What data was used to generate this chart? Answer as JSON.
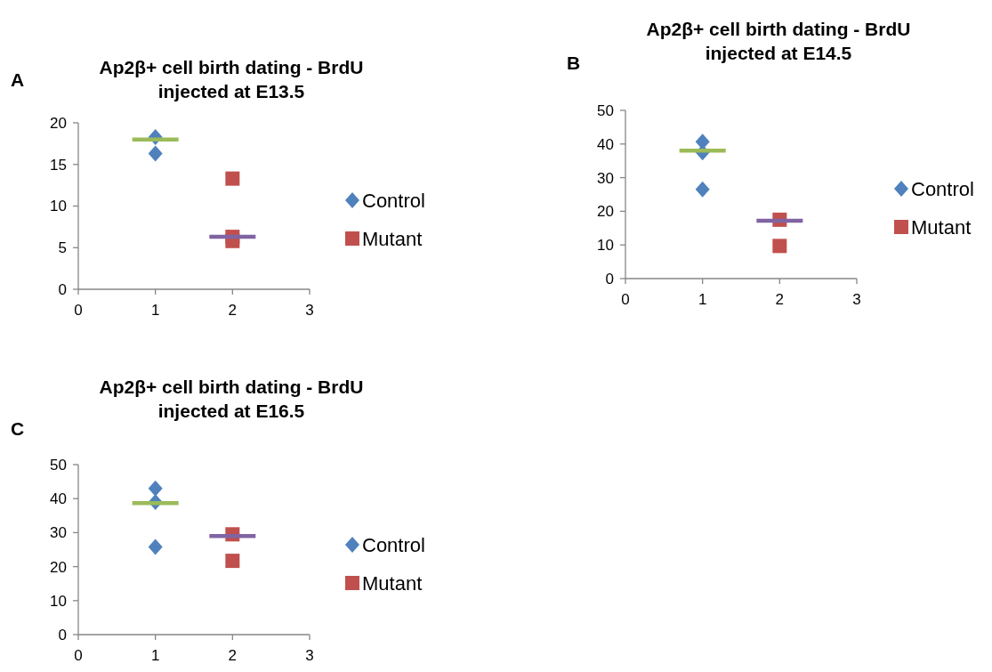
{
  "chart_data": [
    {
      "type": "scatter",
      "title": "Ap2β+ cell birth dating - BrdU injected at E13.5",
      "annotations": [
        "A"
      ],
      "xlim": [
        0,
        3
      ],
      "xticks": [
        0,
        1,
        2,
        3
      ],
      "ylim": [
        0,
        20
      ],
      "yticks": [
        0,
        5,
        10,
        15,
        20
      ],
      "grid": false,
      "legend": "right",
      "series": [
        {
          "name": "Control",
          "color": "#4f81bd",
          "marker": "diamond",
          "x": [
            1,
            1
          ],
          "values": [
            18.3,
            16.3
          ]
        },
        {
          "name": "Mutant",
          "color": "#c0504d",
          "marker": "square",
          "x": [
            2,
            2,
            2
          ],
          "values": [
            13.3,
            6.3,
            5.8
          ]
        },
        {
          "type": "line",
          "color": "#9bbb59",
          "marker": "none",
          "x": [
            0.7,
            1.3
          ],
          "values": [
            18,
            18
          ]
        },
        {
          "type": "line",
          "color": "#8064a2",
          "marker": "none",
          "x": [
            1.7,
            2.3
          ],
          "values": [
            6.3,
            6.3
          ]
        }
      ]
    },
    {
      "type": "scatter",
      "title": "Ap2β+ cell birth dating - BrdU injected at E14.5",
      "annotations": [
        "B"
      ],
      "xlim": [
        0,
        3
      ],
      "xticks": [
        0,
        1,
        2,
        3
      ],
      "ylim": [
        0,
        50
      ],
      "yticks": [
        0,
        10,
        20,
        30,
        40,
        50
      ],
      "grid": false,
      "legend": "right",
      "series": [
        {
          "name": "Control",
          "color": "#4f81bd",
          "marker": "diamond",
          "x": [
            1,
            1,
            1
          ],
          "values": [
            40.7,
            37.5,
            26.5
          ]
        },
        {
          "name": "Mutant",
          "color": "#c0504d",
          "marker": "square",
          "x": [
            2,
            2
          ],
          "values": [
            17.5,
            9.7
          ]
        },
        {
          "type": "line",
          "color": "#9bbb59",
          "marker": "none",
          "x": [
            0.7,
            1.3
          ],
          "values": [
            38,
            38
          ]
        },
        {
          "type": "line",
          "color": "#8064a2",
          "marker": "none",
          "x": [
            1.7,
            2.3
          ],
          "values": [
            17.2,
            17.2
          ]
        }
      ]
    },
    {
      "type": "scatter",
      "title": "Ap2β+ cell birth dating - BrdU injected at E16.5",
      "annotations": [
        "C"
      ],
      "xlim": [
        0,
        3
      ],
      "xticks": [
        0,
        1,
        2,
        3
      ],
      "ylim": [
        0,
        50
      ],
      "yticks": [
        0,
        10,
        20,
        30,
        40,
        50
      ],
      "grid": false,
      "legend": "right",
      "series": [
        {
          "name": "Control",
          "color": "#4f81bd",
          "marker": "diamond",
          "x": [
            1,
            1,
            1
          ],
          "values": [
            43,
            39,
            25.8
          ]
        },
        {
          "name": "Mutant",
          "color": "#c0504d",
          "marker": "square",
          "x": [
            2,
            2
          ],
          "values": [
            29.5,
            21.7
          ]
        },
        {
          "type": "line",
          "color": "#9bbb59",
          "marker": "none",
          "x": [
            0.7,
            1.3
          ],
          "values": [
            38.7,
            38.7
          ]
        },
        {
          "type": "line",
          "color": "#8064a2",
          "marker": "none",
          "x": [
            1.7,
            2.3
          ],
          "values": [
            29,
            29
          ]
        }
      ]
    }
  ]
}
